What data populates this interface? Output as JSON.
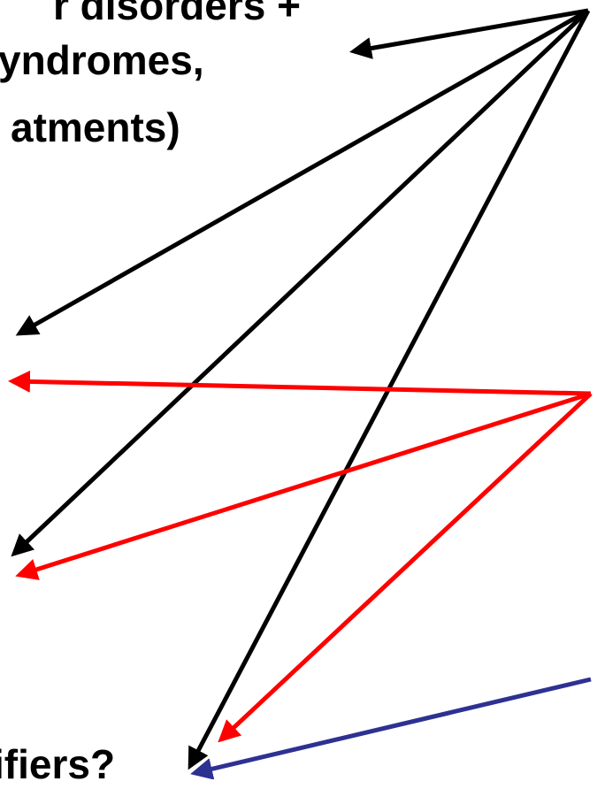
{
  "text_lines": [
    "r disorders +",
    "yndromes,",
    "atments)",
    "ifiers?"
  ],
  "colors": {
    "black_arrows": "#000000",
    "red_arrows": "#ff0000",
    "blue_arrow": "#2e3192"
  },
  "arrows": [
    {
      "group": "black",
      "name": "arrow-to-syndromes"
    },
    {
      "group": "black",
      "name": "arrow-to-left-upper"
    },
    {
      "group": "black",
      "name": "arrow-to-left-middle"
    },
    {
      "group": "black",
      "name": "arrow-to-specifiers"
    },
    {
      "group": "red",
      "name": "red-arrow-to-left-upper"
    },
    {
      "group": "red",
      "name": "red-arrow-to-left-middle"
    },
    {
      "group": "red",
      "name": "red-arrow-to-specifiers"
    },
    {
      "group": "blue",
      "name": "blue-arrow-to-specifiers"
    }
  ]
}
